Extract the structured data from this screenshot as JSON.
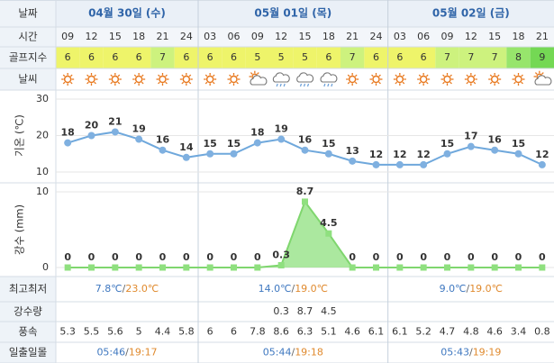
{
  "header": {
    "date_label": "날짜",
    "days": [
      "04월 30일 (수)",
      "05월 01일 (목)",
      "05월 02일 (금)"
    ],
    "day_spans": [
      6,
      8,
      7
    ]
  },
  "time": {
    "label": "시간",
    "values": [
      "09",
      "12",
      "15",
      "18",
      "21",
      "24",
      "03",
      "06",
      "09",
      "12",
      "15",
      "18",
      "21",
      "24",
      "03",
      "06",
      "09",
      "12",
      "15",
      "18",
      "21"
    ]
  },
  "golf": {
    "label": "골프지수",
    "values": [
      6,
      6,
      6,
      6,
      7,
      6,
      6,
      6,
      5,
      5,
      5,
      6,
      7,
      6,
      6,
      6,
      7,
      7,
      7,
      8,
      9
    ],
    "colors": {
      "5": "#eef46a",
      "6": "#eef46a",
      "7": "#cdf27e",
      "8": "#97e56c",
      "9": "#74d854"
    }
  },
  "weather": {
    "label": "날씨"
  },
  "temperature": {
    "label": "기온 (℃)",
    "values": [
      18,
      20,
      21,
      19,
      16,
      14,
      15,
      15,
      18,
      19,
      16,
      15,
      13,
      12,
      12,
      12,
      15,
      17,
      16,
      15,
      12
    ],
    "ylim": [
      10,
      30
    ],
    "yticks": [
      10,
      20,
      30
    ],
    "color": "#6fa8dc",
    "grid": true
  },
  "precipitation": {
    "label": "강수 (mm)",
    "values": [
      0,
      0,
      0,
      0,
      0,
      0,
      0,
      0,
      0,
      0.3,
      8.7,
      4.5,
      0,
      0,
      0,
      0,
      0,
      0,
      0,
      0,
      0
    ],
    "ylim": [
      0,
      10
    ],
    "yticks": [
      0,
      10
    ],
    "color": "#8fe07f",
    "grid": true
  },
  "minmax": {
    "label": "최고최저",
    "days": [
      {
        "min": "7.8℃",
        "sep": "/",
        "max": "23.0℃"
      },
      {
        "min": "14.0℃",
        "sep": "/",
        "max": "19.0℃"
      },
      {
        "min": "9.0℃",
        "sep": "/",
        "max": "19.0℃"
      }
    ]
  },
  "rain": {
    "label": "강수량",
    "values": [
      null,
      null,
      null,
      null,
      null,
      null,
      null,
      null,
      null,
      0.3,
      8.7,
      4.5,
      null,
      null,
      null,
      null,
      null,
      null,
      null,
      null,
      null
    ]
  },
  "wind": {
    "label": "풍속",
    "values": [
      5.3,
      5.5,
      5.6,
      5.0,
      4.4,
      5.8,
      6.0,
      6.0,
      7.8,
      8.6,
      6.3,
      5.1,
      4.6,
      6.1,
      6.1,
      5.2,
      4.7,
      4.8,
      4.6,
      3.4,
      0.8
    ]
  },
  "sun": {
    "label": "일출일몰",
    "days": [
      {
        "rise": "05:46",
        "sep": "/",
        "set": "19:17"
      },
      {
        "rise": "05:44",
        "sep": "/",
        "set": "19:18"
      },
      {
        "rise": "05:43",
        "sep": "/",
        "set": "19:19"
      }
    ]
  }
}
